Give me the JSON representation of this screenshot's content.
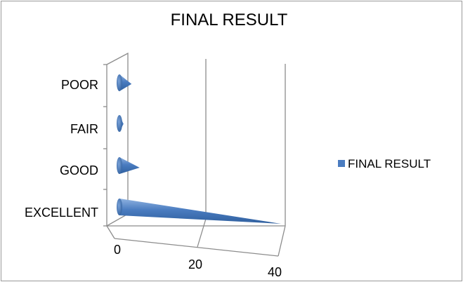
{
  "colors": {
    "series": "#4a7cc0",
    "series_dark": "#2f5f9e",
    "series_light": "#8fb2e0"
  },
  "chart_data": {
    "type": "bar",
    "subtype": "3d-cone-horizontal",
    "title": "FINAL RESULT",
    "categories": [
      "EXCELLENT",
      "GOOD",
      "FAIR",
      "POOR"
    ],
    "series": [
      {
        "name": "FINAL RESULT",
        "values": [
          40,
          5,
          1,
          3
        ]
      }
    ],
    "xlim": [
      0,
      40
    ],
    "xticks": [
      "0",
      "20",
      "40"
    ],
    "gridlines": true,
    "legend": {
      "position": "right",
      "entries": [
        "FINAL RESULT"
      ]
    }
  }
}
